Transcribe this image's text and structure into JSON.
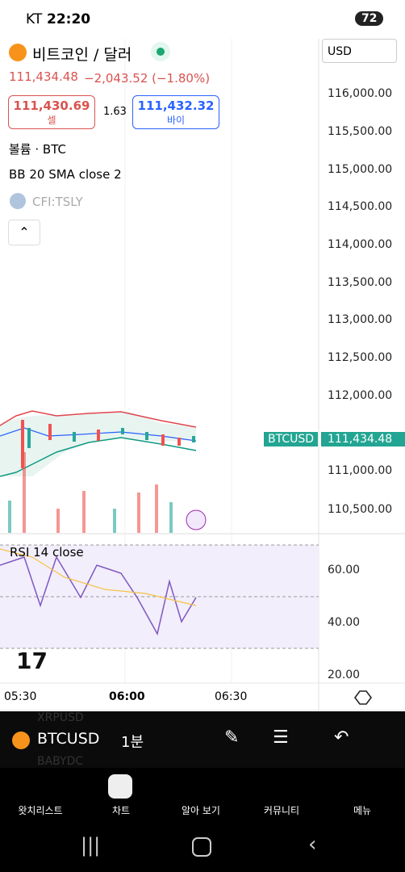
{
  "status": {
    "carrier": "KT",
    "time": "22:20",
    "battery": "72"
  },
  "header": {
    "title": "비트코인 / 달러",
    "currency": "USD",
    "price": "111,434.48",
    "change": "−2,043.52 (−1.80%)"
  },
  "quote": {
    "sell_price": "111,430.69",
    "sell_label": "셀",
    "spread": "1.63",
    "buy_price": "111,432.32",
    "buy_label": "바이"
  },
  "indicators": {
    "volume": "볼륨 · BTC",
    "bb": "BB 20 SMA close 2",
    "symbol": "CFI:TSLY",
    "rsi": "RSI 14 close"
  },
  "price_axis": [
    "116,000.00",
    "115,500.00",
    "115,000.00",
    "114,500.00",
    "114,000.00",
    "113,500.00",
    "113,000.00",
    "112,500.00",
    "112,000.00",
    "111,000.00",
    "110,500.00"
  ],
  "price_tag": {
    "symbol": "BTCUSD",
    "price": "111,434.48"
  },
  "rsi_axis": [
    "60.00",
    "40.00",
    "20.00"
  ],
  "time_axis": [
    "05:30",
    "06:00",
    "06:30"
  ],
  "toolbar": {
    "symbol": "BTCUSD",
    "interval": "1분",
    "ghost_top": "XRPUSD",
    "ghost_bottom": "BABYDC"
  },
  "nav": [
    "왓치리스트",
    "차트",
    "알아 보기",
    "커뮤니티",
    "메뉴"
  ]
}
